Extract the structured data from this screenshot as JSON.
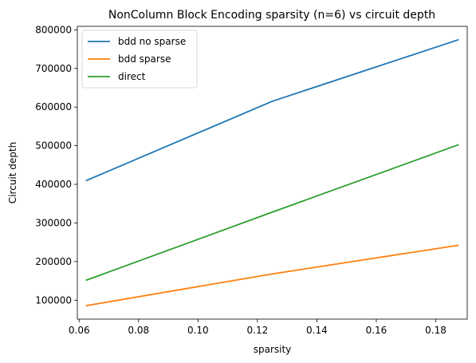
{
  "chart_data": {
    "type": "line",
    "title": "NonColumn Block Encoding sparsity (n=6) vs circuit depth",
    "xlabel": "sparsity",
    "ylabel": "Circuit depth",
    "x": [
      0.0625,
      0.125,
      0.1875
    ],
    "xlim": [
      0.0594,
      0.1906
    ],
    "ylim": [
      51000,
      809000
    ],
    "xticks": [
      0.06,
      0.08,
      0.1,
      0.12,
      0.14,
      0.16,
      0.18
    ],
    "xtick_labels": [
      "0.06",
      "0.08",
      "0.10",
      "0.12",
      "0.14",
      "0.16",
      "0.18"
    ],
    "yticks": [
      100000,
      200000,
      300000,
      400000,
      500000,
      600000,
      700000,
      800000
    ],
    "ytick_labels": [
      "100000",
      "200000",
      "300000",
      "400000",
      "500000",
      "600000",
      "700000",
      "800000"
    ],
    "grid": false,
    "legend_position": "upper-left",
    "series": [
      {
        "name": "bdd no sparse",
        "color": "#1f77b4",
        "values": [
          410000,
          615000,
          774000
        ]
      },
      {
        "name": "bdd sparse",
        "color": "#ff7f0e",
        "values": [
          86000,
          168000,
          242000
        ]
      },
      {
        "name": "direct",
        "color": "#2ca02c",
        "values": [
          152000,
          328000,
          502000
        ]
      }
    ]
  }
}
